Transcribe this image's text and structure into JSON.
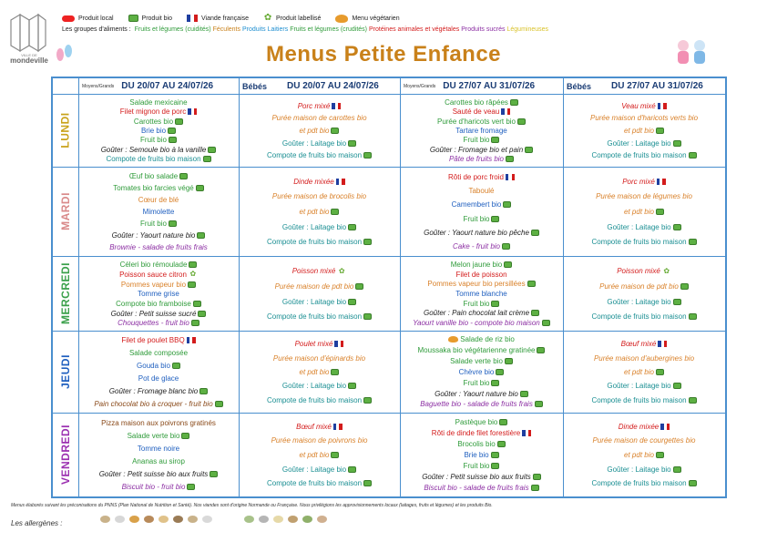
{
  "logo": {
    "city_small": "VILLE DE",
    "city": "mondeville"
  },
  "legend": [
    {
      "icon": "local-icon",
      "label": "Produit local"
    },
    {
      "icon": "bio-icon",
      "label": "Produit bio"
    },
    {
      "icon": "french-flag-icon",
      "label": "Viande française"
    },
    {
      "icon": "star-icon",
      "label": "Produit labellisé"
    },
    {
      "icon": "veg-icon",
      "label": "Menu végétarien"
    }
  ],
  "groups": {
    "prefix": "Les groupes d'aliments : ",
    "items": [
      {
        "label": "Fruits et légumes (cuidités)",
        "color": "#2f9b3a"
      },
      {
        "label": "Féculents",
        "color": "#c9811a"
      },
      {
        "label": "Produits Laitiers",
        "color": "#1f8fd0"
      },
      {
        "label": "Fruits et légumes (crudités)",
        "color": "#2f9b3a"
      },
      {
        "label": "Protéines animales et végétales",
        "color": "#d31c1c"
      },
      {
        "label": "Produits sucrés",
        "color": "#8c2fa3"
      },
      {
        "label": "Légumineuses",
        "color": "#d9c22a"
      }
    ]
  },
  "title": "Menus Petite Enfance",
  "headers": [
    {
      "small": "Moyens/Grands",
      "label": "DU 20/07 AU 24/07/26"
    },
    {
      "small": "Bébés",
      "label": "DU 20/07 AU 24/07/26"
    },
    {
      "small": "Moyens/Grands",
      "label": "DU 27/07 AU 31/07/26"
    },
    {
      "small": "Bébés",
      "label": "DU 27/07 AU 31/07/26"
    }
  ],
  "days": [
    {
      "name": "LUNDI",
      "color": "#c9a21a"
    },
    {
      "name": "MARDI",
      "color": "#d98a8a"
    },
    {
      "name": "MERCREDI",
      "color": "#3aa04a"
    },
    {
      "name": "JEUDI",
      "color": "#1f5fbf"
    },
    {
      "name": "VENDREDI",
      "color": "#9b2fb0"
    }
  ],
  "menus": [
    [
      [
        {
          "t": "Salade mexicaine",
          "c": "c-green"
        },
        {
          "t": "Filet mignon de porc",
          "c": "c-red",
          "f": 1
        },
        {
          "t": "Carottes bio",
          "c": "c-green",
          "b": 1
        },
        {
          "t": "Brie bio",
          "c": "c-blue",
          "b": 1
        },
        {
          "t": "Fruit bio",
          "c": "c-green",
          "b": 1
        },
        {
          "t": "Goûter : Semoule bio à la vanille",
          "c": "c-black it",
          "b": 1
        },
        {
          "t": "Compote de fruits bio maison",
          "c": "c-teal",
          "b": 1
        }
      ],
      [
        {
          "t": "Porc mixé",
          "c": "c-red it",
          "f": 1
        },
        {
          "t": "Purée maison de carottes bio",
          "c": "c-orange it"
        },
        {
          "t": "et pdt bio",
          "c": "c-orange it",
          "b": 1
        },
        {
          "t": "Goûter : Laitage bio",
          "c": "c-teal",
          "b": 1
        },
        {
          "t": "Compote de fruits bio maison",
          "c": "c-teal",
          "b": 1
        }
      ],
      [
        {
          "t": "Carottes bio râpées",
          "c": "c-green",
          "b": 1
        },
        {
          "t": "Sauté de veau",
          "c": "c-red",
          "f": 1
        },
        {
          "t": "Purée d'haricots vert bio",
          "c": "c-green",
          "b": 1
        },
        {
          "t": "Tartare fromage",
          "c": "c-blue"
        },
        {
          "t": "Fruit bio",
          "c": "c-green",
          "b": 1
        },
        {
          "t": "Goûter : Fromage bio et pain",
          "c": "c-black it",
          "b": 1
        },
        {
          "t": "Pâte de fruits bio",
          "c": "c-purple it",
          "b": 1
        }
      ],
      [
        {
          "t": "Veau mixé",
          "c": "c-red it",
          "f": 1
        },
        {
          "t": "Purée maison d'haricots verts bio",
          "c": "c-orange it"
        },
        {
          "t": "et pdt bio",
          "c": "c-orange it",
          "b": 1
        },
        {
          "t": "Goûter : Laitage bio",
          "c": "c-teal",
          "b": 1
        },
        {
          "t": "Compote de fruits bio maison",
          "c": "c-teal",
          "b": 1
        }
      ]
    ],
    [
      [
        {
          "t": "Œuf bio salade",
          "c": "c-green",
          "b": 1
        },
        {
          "t": "Tomates bio farcies végé",
          "c": "c-green",
          "b": 1
        },
        {
          "t": "Cœur de blé",
          "c": "c-orange"
        },
        {
          "t": "Mimolette",
          "c": "c-blue"
        },
        {
          "t": "Fruit bio",
          "c": "c-green",
          "b": 1
        },
        {
          "t": "Goûter : Yaourt nature bio",
          "c": "c-black it",
          "b": 1
        },
        {
          "t": "Brownie - salade de fruits frais",
          "c": "c-purple it"
        }
      ],
      [
        {
          "t": "Dinde mixée",
          "c": "c-red it",
          "f": 1
        },
        {
          "t": "Purée maison de brocolis bio",
          "c": "c-orange it"
        },
        {
          "t": "et pdt bio",
          "c": "c-orange it",
          "b": 1
        },
        {
          "t": "Goûter : Laitage bio",
          "c": "c-teal",
          "b": 1
        },
        {
          "t": "Compote de fruits bio maison",
          "c": "c-teal",
          "b": 1
        }
      ],
      [
        {
          "t": "Rôti de porc froid",
          "c": "c-red",
          "f": 1
        },
        {
          "t": "Taboulé",
          "c": "c-orange"
        },
        {
          "t": "Camembert bio",
          "c": "c-blue",
          "b": 1
        },
        {
          "t": "Fruit bio",
          "c": "c-green",
          "b": 1
        },
        {
          "t": "Goûter : Yaourt nature bio pêche",
          "c": "c-black it",
          "b": 1
        },
        {
          "t": "Cake - fruit bio",
          "c": "c-purple it",
          "b": 1
        }
      ],
      [
        {
          "t": "Porc mixé",
          "c": "c-red it",
          "f": 1
        },
        {
          "t": "Purée maison de légumes bio",
          "c": "c-orange it"
        },
        {
          "t": "et pdt bio",
          "c": "c-orange it",
          "b": 1
        },
        {
          "t": "Goûter : Laitage bio",
          "c": "c-teal",
          "b": 1
        },
        {
          "t": "Compote de fruits bio maison",
          "c": "c-teal",
          "b": 1
        }
      ]
    ],
    [
      [
        {
          "t": "Céleri bio rémoulade",
          "c": "c-green",
          "b": 1
        },
        {
          "t": "Poisson sauce citron",
          "c": "c-red",
          "s": 1
        },
        {
          "t": "Pommes vapeur bio",
          "c": "c-orange",
          "b": 1
        },
        {
          "t": "Tomme grise",
          "c": "c-blue"
        },
        {
          "t": "Compote bio framboise",
          "c": "c-green",
          "b": 1
        },
        {
          "t": "Goûter : Petit suisse sucré",
          "c": "c-black it",
          "b": 1
        },
        {
          "t": "Chouquettes - fruit bio",
          "c": "c-purple it",
          "b": 1
        }
      ],
      [
        {
          "t": "Poisson mixé",
          "c": "c-red it",
          "s": 1
        },
        {
          "t": "Purée maison de pdt bio",
          "c": "c-orange it",
          "b": 1
        },
        {
          "t": "Goûter : Laitage bio",
          "c": "c-teal",
          "b": 1
        },
        {
          "t": "Compote de fruits bio maison",
          "c": "c-teal",
          "b": 1
        }
      ],
      [
        {
          "t": "Melon jaune bio",
          "c": "c-green",
          "b": 1
        },
        {
          "t": "Filet de poisson",
          "c": "c-red"
        },
        {
          "t": "Pommes vapeur bio persillées",
          "c": "c-orange",
          "b": 1
        },
        {
          "t": "Tomme blanche",
          "c": "c-blue"
        },
        {
          "t": "Fruit bio",
          "c": "c-green",
          "b": 1
        },
        {
          "t": "Goûter : Pain chocolat lait crème",
          "c": "c-black it",
          "b": 1
        },
        {
          "t": "Yaourt vanille bio - compote bio maison",
          "c": "c-purple it",
          "b": 1
        }
      ],
      [
        {
          "t": "Poisson mixé",
          "c": "c-red it",
          "s": 1
        },
        {
          "t": "Purée maison de pdt bio",
          "c": "c-orange it",
          "b": 1
        },
        {
          "t": "Goûter : Laitage bio",
          "c": "c-teal",
          "b": 1
        },
        {
          "t": "Compote de fruits bio maison",
          "c": "c-teal",
          "b": 1
        }
      ]
    ],
    [
      [
        {
          "t": "Filet de poulet BBQ",
          "c": "c-red",
          "f": 1
        },
        {
          "t": "Salade composée",
          "c": "c-green"
        },
        {
          "t": "Gouda bio",
          "c": "c-blue",
          "b": 1
        },
        {
          "t": "Pot de glace",
          "c": "c-blue"
        },
        {
          "t": "Goûter : Fromage blanc bio",
          "c": "c-black it",
          "b": 1
        },
        {
          "t": "Pain chocolat bio à croquer - fruit bio",
          "c": "c-brown it",
          "b": 1
        }
      ],
      [
        {
          "t": "Poulet mixé",
          "c": "c-red it",
          "f": 1
        },
        {
          "t": "Purée maison d'épinards bio",
          "c": "c-orange it"
        },
        {
          "t": "et pdt bio",
          "c": "c-orange it",
          "b": 1
        },
        {
          "t": "Goûter : Laitage bio",
          "c": "c-teal",
          "b": 1
        },
        {
          "t": "Compote de fruits bio maison",
          "c": "c-teal",
          "b": 1
        }
      ],
      [
        {
          "t": "Salade de riz bio",
          "c": "c-green",
          "v": 1
        },
        {
          "t": "Moussaka bio végétarienne gratinée",
          "c": "c-green",
          "b": 1
        },
        {
          "t": "Salade verte bio",
          "c": "c-green",
          "b": 1
        },
        {
          "t": "Chèvre bio",
          "c": "c-blue",
          "b": 1
        },
        {
          "t": "Fruit bio",
          "c": "c-green",
          "b": 1
        },
        {
          "t": "Goûter : Yaourt nature bio",
          "c": "c-black it",
          "b": 1
        },
        {
          "t": "Baguette bio - salade de fruits frais",
          "c": "c-purple it",
          "b": 1
        }
      ],
      [
        {
          "t": "Bœuf mixé",
          "c": "c-red it",
          "f": 1
        },
        {
          "t": "Purée maison d'aubergines bio",
          "c": "c-orange it"
        },
        {
          "t": "et pdt bio",
          "c": "c-orange it",
          "b": 1
        },
        {
          "t": "Goûter : Laitage bio",
          "c": "c-teal",
          "b": 1
        },
        {
          "t": "Compote de fruits bio maison",
          "c": "c-teal",
          "b": 1
        }
      ]
    ],
    [
      [
        {
          "t": "Pizza maison aux poivrons gratinés",
          "c": "c-brown"
        },
        {
          "t": "Salade verte bio",
          "c": "c-green",
          "b": 1
        },
        {
          "t": "Tomme noire",
          "c": "c-blue"
        },
        {
          "t": "Ananas au sirop",
          "c": "c-green"
        },
        {
          "t": "Goûter : Petit suisse bio aux fruits",
          "c": "c-black it",
          "b": 1
        },
        {
          "t": "Biscuit bio - fruit bio",
          "c": "c-purple it",
          "b": 1
        }
      ],
      [
        {
          "t": "Bœuf mixé",
          "c": "c-red it",
          "f": 1
        },
        {
          "t": "Purée maison de poivrons bio",
          "c": "c-orange it"
        },
        {
          "t": "et pdt bio",
          "c": "c-orange it",
          "b": 1
        },
        {
          "t": "Goûter : Laitage bio",
          "c": "c-teal",
          "b": 1
        },
        {
          "t": "Compote de fruits bio maison",
          "c": "c-teal",
          "b": 1
        }
      ],
      [
        {
          "t": "Pastèque bio",
          "c": "c-green",
          "b": 1
        },
        {
          "t": "Rôti de dinde filet forestière",
          "c": "c-red",
          "f": 1
        },
        {
          "t": "Brocolis bio",
          "c": "c-green",
          "b": 1
        },
        {
          "t": "Brie bio",
          "c": "c-blue",
          "b": 1
        },
        {
          "t": "Fruit bio",
          "c": "c-green",
          "b": 1
        },
        {
          "t": "Goûter : Petit suisse bio aux fruits",
          "c": "c-black it",
          "b": 1
        },
        {
          "t": "Biscuit bio - salade de fruits frais",
          "c": "c-purple it",
          "b": 1
        }
      ],
      [
        {
          "t": "Dinde mixée",
          "c": "c-red it",
          "f": 1
        },
        {
          "t": "Purée maison de courgettes bio",
          "c": "c-orange it"
        },
        {
          "t": "et pdt bio",
          "c": "c-orange it",
          "b": 1
        },
        {
          "t": "Goûter : Laitage bio",
          "c": "c-teal",
          "b": 1
        },
        {
          "t": "Compote de fruits bio maison",
          "c": "c-teal",
          "b": 1
        }
      ]
    ]
  ],
  "footer": "Menus élaborés suivant les préconisations du PNNS (Plan National de Nutrition et Santé). Nos viandes sont d'origine Normande ou Française. Nous privilégions les approvisionnements locaux (laitages, fruits et légumes) et les produits Bio.",
  "allergens_label": "Les allergènes :"
}
